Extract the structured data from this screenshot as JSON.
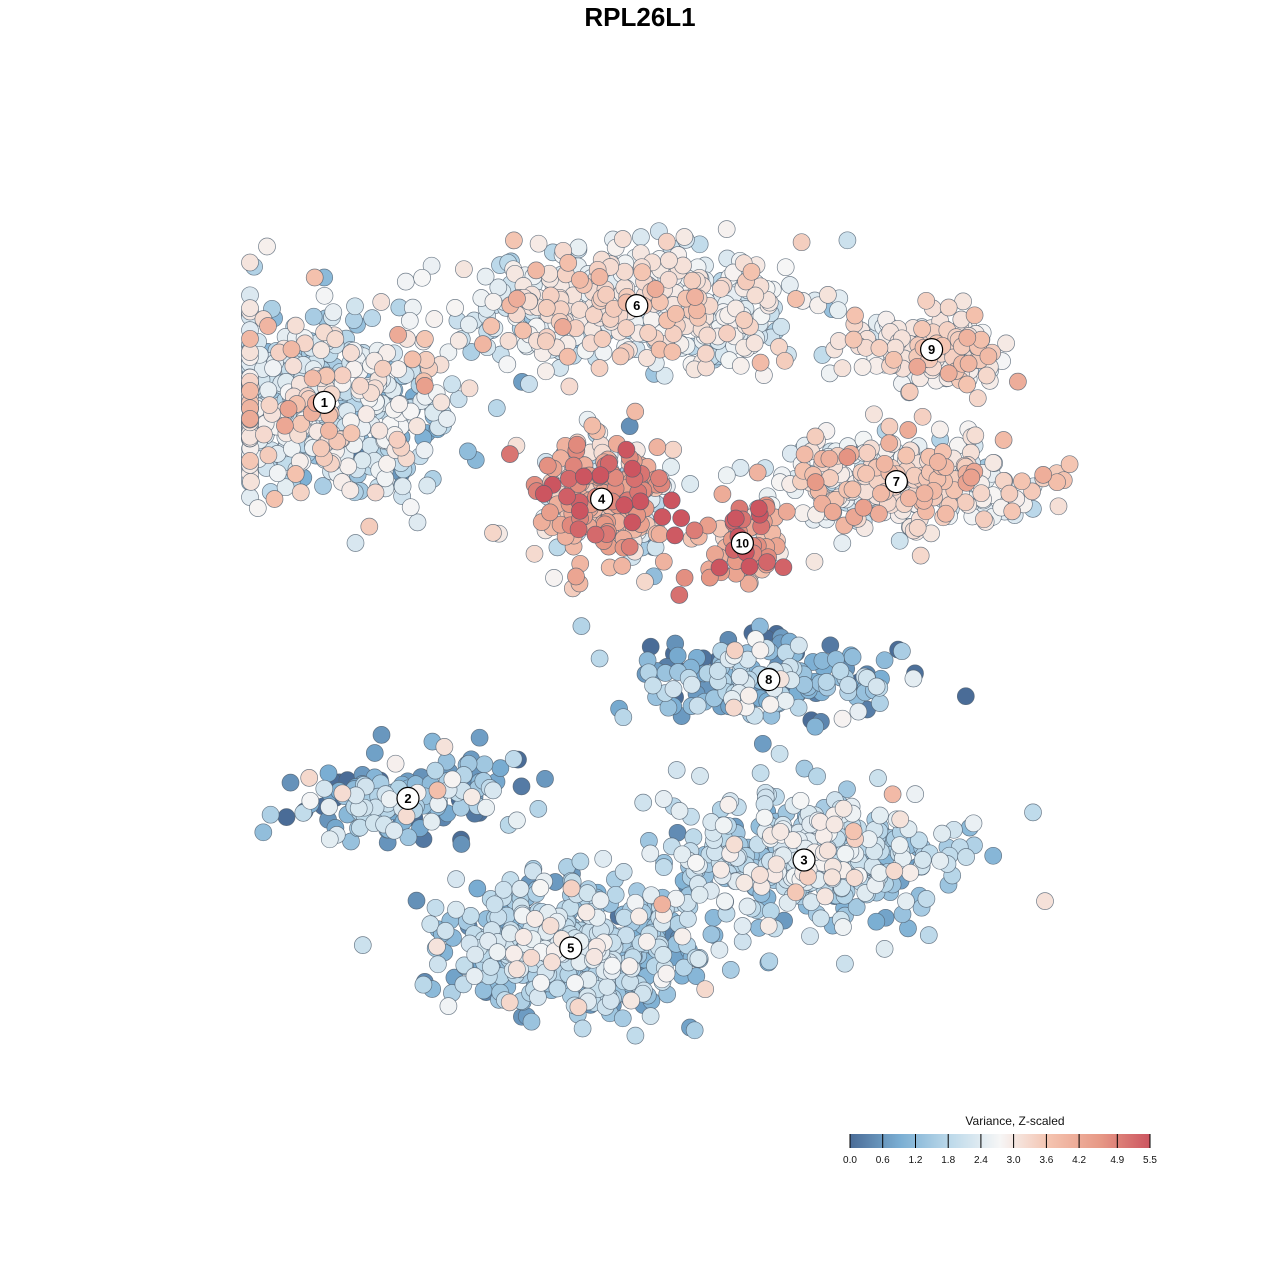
{
  "chart_data": {
    "type": "scatter",
    "title": "RPL26L1",
    "xlabel": "",
    "ylabel": "",
    "grid": false,
    "axes": false,
    "color_legend": {
      "title": "Variance, Z-scaled",
      "placement": "bottom-right",
      "ticks": [
        "0.0",
        "0.6",
        "1.2",
        "1.8",
        "2.4",
        "3.0",
        "3.6",
        "4.2",
        "4.9",
        "5.5"
      ],
      "range": [
        0.0,
        5.5
      ],
      "colors": [
        "#4a6c97",
        "#7aaed3",
        "#bcd9ea",
        "#f6f6f6",
        "#f4c2ae",
        "#e79986",
        "#cc5560"
      ]
    },
    "clusters": [
      {
        "label": "1",
        "x": -7.4,
        "y": 5.4,
        "spread": [
          2.7,
          2.0
        ],
        "n": 560,
        "mean_value": 2.3,
        "sd_value": 0.75
      },
      {
        "label": "2",
        "x": -5.5,
        "y": -3.6,
        "spread": [
          2.2,
          0.9
        ],
        "n": 170,
        "mean_value": 1.2,
        "sd_value": 0.9
      },
      {
        "label": "3",
        "x": 3.5,
        "y": -5.0,
        "spread": [
          3.0,
          1.4
        ],
        "n": 420,
        "mean_value": 2.0,
        "sd_value": 0.6
      },
      {
        "label": "4",
        "x": -1.1,
        "y": 3.2,
        "spread": [
          1.4,
          1.4
        ],
        "n": 300,
        "mean_value": 3.4,
        "sd_value": 1.3
      },
      {
        "label": "5",
        "x": -1.8,
        "y": -7.0,
        "spread": [
          2.6,
          1.3
        ],
        "n": 560,
        "mean_value": 1.6,
        "sd_value": 0.65
      },
      {
        "label": "6",
        "x": -0.3,
        "y": 7.6,
        "spread": [
          3.4,
          1.2
        ],
        "n": 520,
        "mean_value": 2.7,
        "sd_value": 0.55
      },
      {
        "label": "7",
        "x": 5.6,
        "y": 3.6,
        "spread": [
          2.6,
          0.9
        ],
        "n": 330,
        "mean_value": 3.0,
        "sd_value": 0.6
      },
      {
        "label": "8",
        "x": 2.7,
        "y": -0.9,
        "spread": [
          2.6,
          0.9
        ],
        "n": 200,
        "mean_value": 1.3,
        "sd_value": 0.9
      },
      {
        "label": "9",
        "x": 6.4,
        "y": 6.6,
        "spread": [
          1.6,
          0.7
        ],
        "n": 170,
        "mean_value": 3.0,
        "sd_value": 0.45
      },
      {
        "label": "10",
        "x": 2.1,
        "y": 2.2,
        "spread": [
          1.0,
          0.9
        ],
        "n": 70,
        "mean_value": 4.4,
        "sd_value": 0.8
      }
    ]
  }
}
